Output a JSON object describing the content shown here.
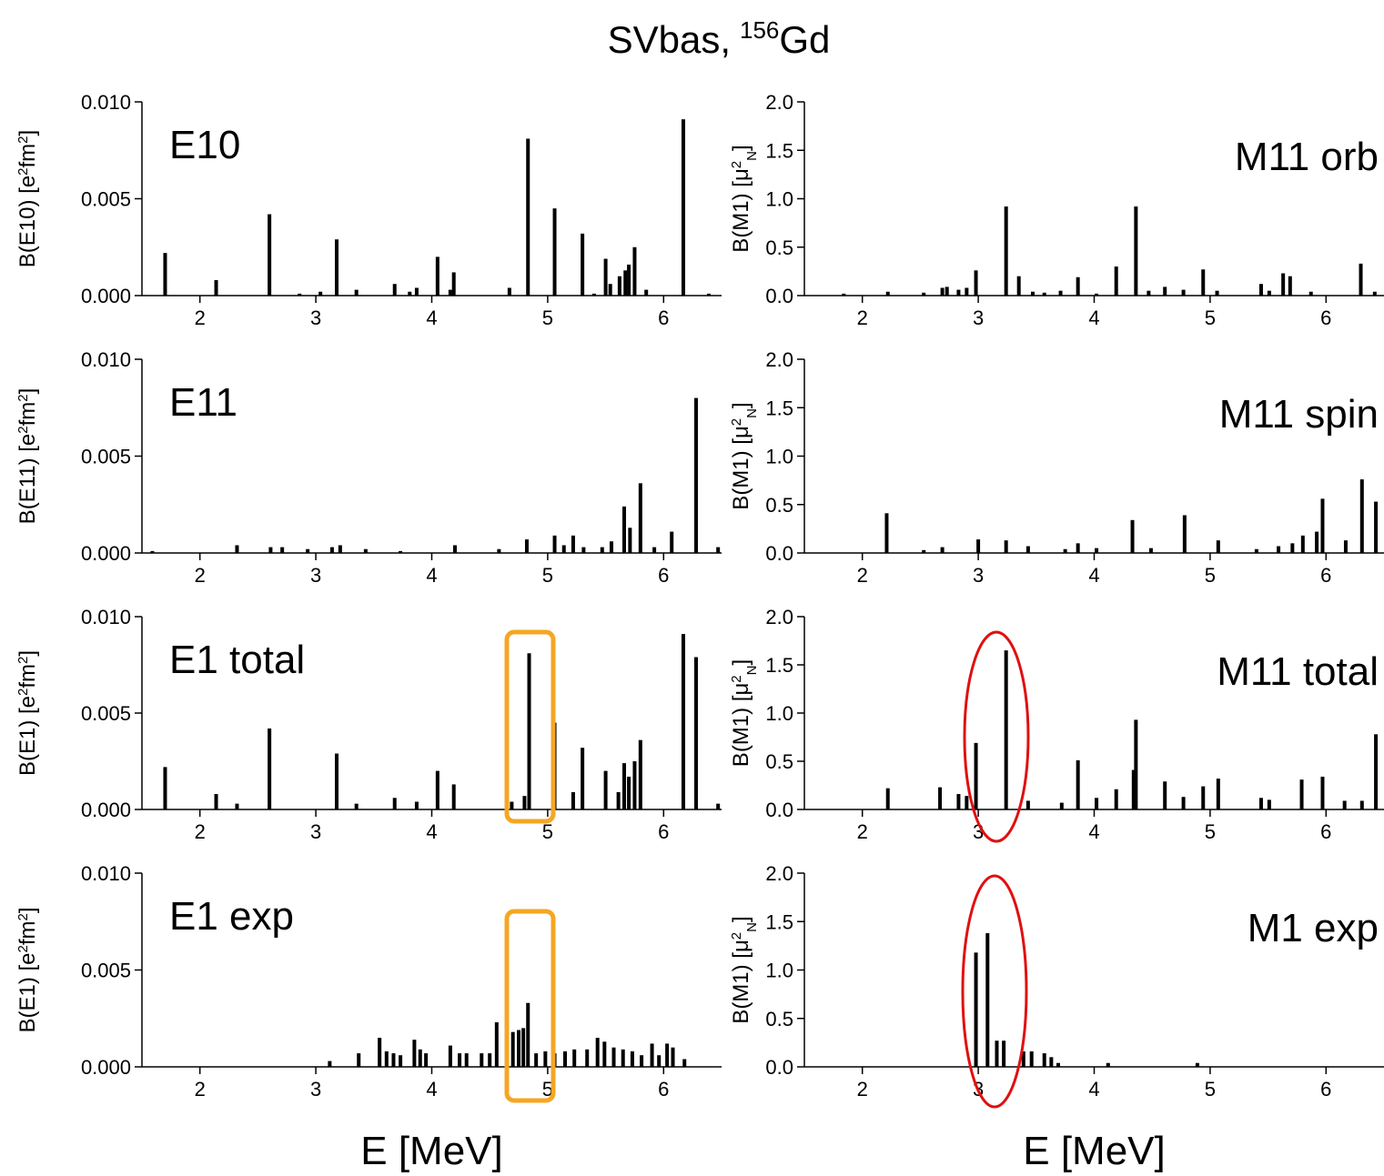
{
  "figure_title": {
    "text": "SVbas,",
    "superscript": "156",
    "element": "Gd"
  },
  "chart_data": [
    {
      "type": "bar",
      "label": "E10",
      "color": "#000000",
      "ylabel": [
        {
          "text": "B(E10) [e"
        },
        {
          "text": "2",
          "pos": "sup"
        },
        {
          "text": "fm"
        },
        {
          "text": "2",
          "pos": "sup"
        },
        {
          "text": "]"
        }
      ],
      "xlim": [
        1.5,
        6.5
      ],
      "xticks": [
        2,
        3,
        4,
        5,
        6
      ],
      "ylim": [
        0,
        0.01
      ],
      "yticks": [
        {
          "value": 0,
          "label": "0.000"
        },
        {
          "value": 0.005,
          "label": "0.005"
        },
        {
          "value": 0.01,
          "label": "0.010"
        }
      ],
      "x": [
        1.7,
        2.14,
        2.6,
        2.86,
        3.04,
        3.18,
        3.35,
        3.68,
        3.81,
        3.87,
        4.05,
        4.16,
        4.19,
        4.67,
        4.83,
        5.06,
        5.3,
        5.4,
        5.5,
        5.54,
        5.62,
        5.67,
        5.7,
        5.75,
        5.85,
        6.17,
        6.39
      ],
      "values": [
        0.0022,
        0.0008,
        0.0042,
        0.0001,
        0.0002,
        0.0029,
        0.0003,
        0.0006,
        0.0002,
        0.0004,
        0.002,
        0.0003,
        0.0012,
        0.0004,
        0.0081,
        0.0045,
        0.0032,
        0.0001,
        0.0019,
        0.0006,
        0.001,
        0.0013,
        0.0016,
        0.0025,
        0.0003,
        0.0091,
        0.0001
      ]
    },
    {
      "type": "bar",
      "label": "M11 orb",
      "color": "#000000",
      "ylabel": [
        {
          "text": "B(M1) ["
        },
        {
          "text": "μ"
        },
        {
          "text": "2",
          "pos": "sup"
        },
        {
          "text": "N",
          "pos": "sub"
        },
        {
          "text": "]"
        }
      ],
      "xlim": [
        1.5,
        6.5
      ],
      "xticks": [
        2,
        3,
        4,
        5,
        6
      ],
      "ylim": [
        0,
        2
      ],
      "yticks": [
        {
          "value": 0,
          "label": "0.0"
        },
        0.5,
        {
          "value": 1,
          "label": "1.0"
        },
        1.5,
        {
          "value": 2,
          "label": "2.0"
        }
      ],
      "x": [
        1.84,
        2.22,
        2.53,
        2.69,
        2.73,
        2.83,
        2.9,
        2.98,
        3.24,
        3.35,
        3.47,
        3.57,
        3.71,
        3.86,
        4.02,
        4.19,
        4.36,
        4.47,
        4.61,
        4.77,
        4.94,
        5.06,
        5.44,
        5.51,
        5.63,
        5.69,
        5.87,
        6.3,
        6.42
      ],
      "values": [
        0.02,
        0.04,
        0.03,
        0.08,
        0.09,
        0.06,
        0.08,
        0.26,
        0.92,
        0.2,
        0.04,
        0.03,
        0.05,
        0.19,
        0.02,
        0.3,
        0.92,
        0.05,
        0.09,
        0.06,
        0.27,
        0.05,
        0.12,
        0.05,
        0.23,
        0.2,
        0.04,
        0.33,
        0.04
      ]
    },
    {
      "type": "bar",
      "label": "E11",
      "color": "#000000",
      "ylabel": [
        {
          "text": "B(E11) [e"
        },
        {
          "text": "2",
          "pos": "sup"
        },
        {
          "text": "fm"
        },
        {
          "text": "2",
          "pos": "sup"
        },
        {
          "text": "]"
        }
      ],
      "xlim": [
        1.5,
        6.5
      ],
      "xticks": [
        2,
        3,
        4,
        5,
        6
      ],
      "ylim": [
        0,
        0.01
      ],
      "yticks": [
        {
          "value": 0,
          "label": "0.000"
        },
        {
          "value": 0.005,
          "label": "0.005"
        },
        {
          "value": 0.01,
          "label": "0.010"
        }
      ],
      "x": [
        1.59,
        2.32,
        2.61,
        2.71,
        2.93,
        3.14,
        3.21,
        3.43,
        3.73,
        4.2,
        4.58,
        4.82,
        5.06,
        5.14,
        5.22,
        5.31,
        5.47,
        5.55,
        5.66,
        5.71,
        5.8,
        5.92,
        6.07,
        6.28,
        6.47
      ],
      "values": [
        0.0001,
        0.0004,
        0.0003,
        0.0003,
        0.0002,
        0.0003,
        0.0004,
        0.0002,
        0.0001,
        0.0004,
        0.0002,
        0.0007,
        0.0009,
        0.0004,
        0.0009,
        0.0003,
        0.0003,
        0.0006,
        0.0024,
        0.0013,
        0.0036,
        0.0003,
        0.0011,
        0.008,
        0.0003
      ]
    },
    {
      "type": "bar",
      "label": "M11 spin",
      "color": "#000000",
      "ylabel": [
        {
          "text": "B(M1) ["
        },
        {
          "text": "μ"
        },
        {
          "text": "2",
          "pos": "sup"
        },
        {
          "text": "N",
          "pos": "sub"
        },
        {
          "text": "]"
        }
      ],
      "xlim": [
        1.5,
        6.5
      ],
      "xticks": [
        2,
        3,
        4,
        5,
        6
      ],
      "ylim": [
        0,
        2
      ],
      "yticks": [
        {
          "value": 0,
          "label": "0.0"
        },
        0.5,
        {
          "value": 1,
          "label": "1.0"
        },
        1.5,
        {
          "value": 2,
          "label": "2.0"
        }
      ],
      "x": [
        2.21,
        2.53,
        2.69,
        3.0,
        3.24,
        3.43,
        3.75,
        3.86,
        4.02,
        4.33,
        4.49,
        4.78,
        5.07,
        5.4,
        5.59,
        5.71,
        5.8,
        5.92,
        5.97,
        6.17,
        6.31,
        6.43
      ],
      "values": [
        0.41,
        0.03,
        0.06,
        0.14,
        0.13,
        0.07,
        0.04,
        0.1,
        0.05,
        0.34,
        0.05,
        0.39,
        0.13,
        0.04,
        0.07,
        0.1,
        0.18,
        0.22,
        0.56,
        0.13,
        0.76,
        0.53
      ]
    },
    {
      "type": "bar",
      "label": "E1 total",
      "color": "#000000",
      "ylabel": [
        {
          "text": "B(E1) [e"
        },
        {
          "text": "2",
          "pos": "sup"
        },
        {
          "text": "fm"
        },
        {
          "text": "2",
          "pos": "sup"
        },
        {
          "text": "]"
        }
      ],
      "xlim": [
        1.5,
        6.5
      ],
      "xticks": [
        2,
        3,
        4,
        5,
        6
      ],
      "ylim": [
        0,
        0.01
      ],
      "yticks": [
        {
          "value": 0,
          "label": "0.000"
        },
        {
          "value": 0.005,
          "label": "0.005"
        },
        {
          "value": 0.01,
          "label": "0.010"
        }
      ],
      "x": [
        1.7,
        2.14,
        2.32,
        2.6,
        3.18,
        3.35,
        3.68,
        3.87,
        4.05,
        4.19,
        4.69,
        4.8,
        4.84,
        5.06,
        5.22,
        5.3,
        5.5,
        5.61,
        5.66,
        5.7,
        5.75,
        5.8,
        6.17,
        6.28,
        6.47
      ],
      "values": [
        0.0022,
        0.0008,
        0.0003,
        0.0042,
        0.0029,
        0.0003,
        0.0006,
        0.0004,
        0.002,
        0.0013,
        0.0004,
        0.0007,
        0.0081,
        0.0045,
        0.0009,
        0.0032,
        0.002,
        0.0009,
        0.0024,
        0.0017,
        0.0025,
        0.0036,
        0.0091,
        0.0079,
        0.0003
      ]
    },
    {
      "type": "bar",
      "label": "M11 total",
      "color": "#000000",
      "ylabel": [
        {
          "text": "B(M1) ["
        },
        {
          "text": "μ"
        },
        {
          "text": "2",
          "pos": "sup"
        },
        {
          "text": "N",
          "pos": "sub"
        },
        {
          "text": "]"
        }
      ],
      "xlim": [
        1.5,
        6.5
      ],
      "xticks": [
        2,
        3,
        4,
        5,
        6
      ],
      "ylim": [
        0,
        2
      ],
      "yticks": [
        {
          "value": 0,
          "label": "0.0"
        },
        0.5,
        {
          "value": 1,
          "label": "1.0"
        },
        1.5,
        {
          "value": 2,
          "label": "2.0"
        }
      ],
      "x": [
        2.22,
        2.67,
        2.83,
        2.9,
        2.98,
        3.24,
        3.43,
        3.72,
        3.86,
        4.02,
        4.19,
        4.34,
        4.36,
        4.61,
        4.77,
        4.94,
        5.07,
        5.44,
        5.51,
        5.79,
        5.97,
        6.16,
        6.31,
        6.43
      ],
      "values": [
        0.22,
        0.23,
        0.16,
        0.14,
        0.69,
        1.65,
        0.09,
        0.07,
        0.51,
        0.12,
        0.21,
        0.41,
        0.93,
        0.29,
        0.13,
        0.24,
        0.32,
        0.12,
        0.1,
        0.31,
        0.34,
        0.09,
        0.09,
        0.78
      ]
    },
    {
      "type": "bar",
      "label": "E1 exp",
      "color": "#000000",
      "xlabel": "E [MeV]",
      "ylabel": [
        {
          "text": "B(E1) [e"
        },
        {
          "text": "2",
          "pos": "sup"
        },
        {
          "text": "fm"
        },
        {
          "text": "2",
          "pos": "sup"
        },
        {
          "text": "]"
        }
      ],
      "xlim": [
        1.5,
        6.5
      ],
      "xticks": [
        2,
        3,
        4,
        5,
        6
      ],
      "ylim": [
        0,
        0.01
      ],
      "yticks": [
        {
          "value": 0,
          "label": "0.000"
        },
        {
          "value": 0.005,
          "label": "0.005"
        },
        {
          "value": 0.01,
          "label": "0.010"
        }
      ],
      "x": [
        3.12,
        3.37,
        3.55,
        3.61,
        3.67,
        3.73,
        3.85,
        3.9,
        3.95,
        4.16,
        4.24,
        4.3,
        4.43,
        4.5,
        4.56,
        4.7,
        4.75,
        4.79,
        4.83,
        4.9,
        4.98,
        5.06,
        5.15,
        5.23,
        5.34,
        5.43,
        5.49,
        5.57,
        5.65,
        5.73,
        5.81,
        5.9,
        5.96,
        6.03,
        6.08,
        6.18
      ],
      "values": [
        0.0003,
        0.0007,
        0.0015,
        0.0008,
        0.0007,
        0.0006,
        0.0014,
        0.0009,
        0.0007,
        0.0011,
        0.0007,
        0.0007,
        0.0007,
        0.0007,
        0.0023,
        0.0018,
        0.0019,
        0.002,
        0.0033,
        0.0007,
        0.0008,
        0.0007,
        0.0008,
        0.0009,
        0.0009,
        0.0015,
        0.0013,
        0.001,
        0.0009,
        0.0008,
        0.0006,
        0.0012,
        0.0006,
        0.0012,
        0.001,
        0.0004
      ]
    },
    {
      "type": "bar",
      "label": "M1 exp",
      "color": "#000000",
      "xlabel": "E [MeV]",
      "ylabel": [
        {
          "text": "B(M1) ["
        },
        {
          "text": "μ"
        },
        {
          "text": "2",
          "pos": "sup"
        },
        {
          "text": "N",
          "pos": "sub"
        },
        {
          "text": "]"
        }
      ],
      "xlim": [
        1.5,
        6.5
      ],
      "xticks": [
        2,
        3,
        4,
        5,
        6
      ],
      "ylim": [
        0,
        2
      ],
      "yticks": [
        {
          "value": 0,
          "label": "0.0"
        },
        0.5,
        {
          "value": 1,
          "label": "1.0"
        },
        1.5,
        {
          "value": 2,
          "label": "2.0"
        }
      ],
      "x": [
        2.98,
        3.08,
        3.16,
        3.22,
        3.39,
        3.46,
        3.57,
        3.63,
        3.69,
        4.12,
        4.89
      ],
      "values": [
        1.18,
        1.38,
        0.27,
        0.27,
        0.16,
        0.16,
        0.14,
        0.1,
        0.04,
        0.04,
        0.04
      ]
    }
  ]
}
